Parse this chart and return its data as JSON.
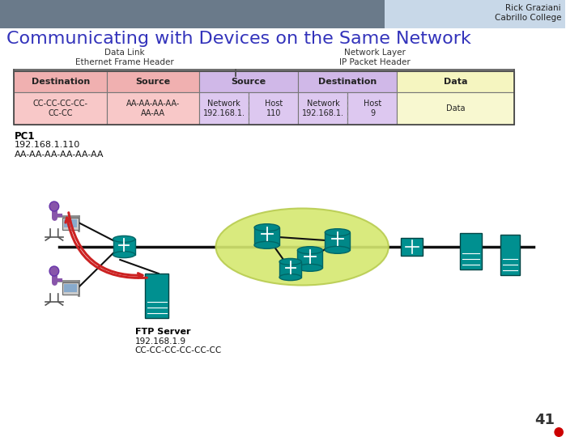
{
  "title": "Communicating with Devices on the Same Network",
  "title_color": "#3333bb",
  "title_fontsize": 16,
  "page_number": "41",
  "header_text_right": "Rick Graziani\nCabrillo College",
  "dl_label": "Data Link\nEthernet Frame Header",
  "nl_label": "Network Layer\nIP Packet Header",
  "col_headers": [
    "Destination",
    "Source",
    "Source",
    "Destination"
  ],
  "col_header_colors": [
    "#f0b0b0",
    "#f0b0b0",
    "#d0b8e8",
    "#d0b8e8"
  ],
  "data_header_color": "#f5f5c0",
  "row_pink": "#f8c8c8",
  "row_purple": "#ddc8f0",
  "row_yellow": "#f8f8d0",
  "teal": "#008888",
  "bg_color": "#ffffff",
  "header_left_color": "#6a7a8a",
  "header_right_color": "#c8d8e8",
  "pc1_text": "PC1",
  "pc1_ip": "192.168.1.110",
  "pc1_mac": "AA-AA-AA-AA-AA-AA",
  "ftp_text": "FTP Server",
  "ftp_ip": "192.168.1.9",
  "ftp_mac": "CC-CC-CC-CC-CC-CC"
}
